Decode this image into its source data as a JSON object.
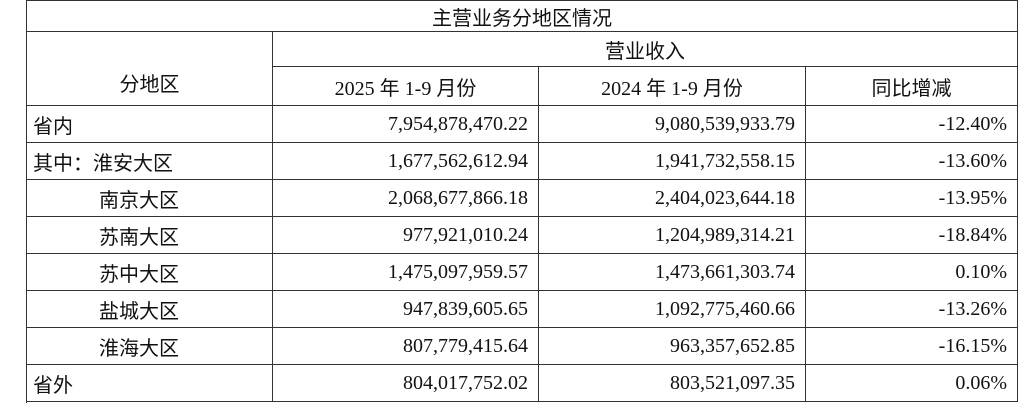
{
  "table": {
    "title": "主营业务分地区情况",
    "group_header": "营业收入",
    "columns": [
      "分地区",
      "2025 年 1-9 月份",
      "2024 年 1-9 月份",
      "同比增减"
    ],
    "rows": [
      [
        "省内",
        "7,954,878,470.22",
        "9,080,539,933.79",
        "-12.40%"
      ],
      [
        "其中：淮安大区",
        "1,677,562,612.94",
        "1,941,732,558.15",
        "-13.60%"
      ],
      [
        "南京大区",
        "2,068,677,866.18",
        "2,404,023,644.18",
        "-13.95%"
      ],
      [
        "苏南大区",
        "977,921,010.24",
        "1,204,989,314.21",
        "-18.84%"
      ],
      [
        "苏中大区",
        "1,475,097,959.57",
        "1,473,661,303.74",
        "0.10%"
      ],
      [
        "盐城大区",
        "947,839,605.65",
        "1,092,775,460.66",
        "-13.26%"
      ],
      [
        "淮海大区",
        "807,779,415.64",
        "963,357,652.85",
        "-16.15%"
      ],
      [
        "省外",
        "804,017,752.02",
        "803,521,097.35",
        "0.06%"
      ]
    ]
  }
}
